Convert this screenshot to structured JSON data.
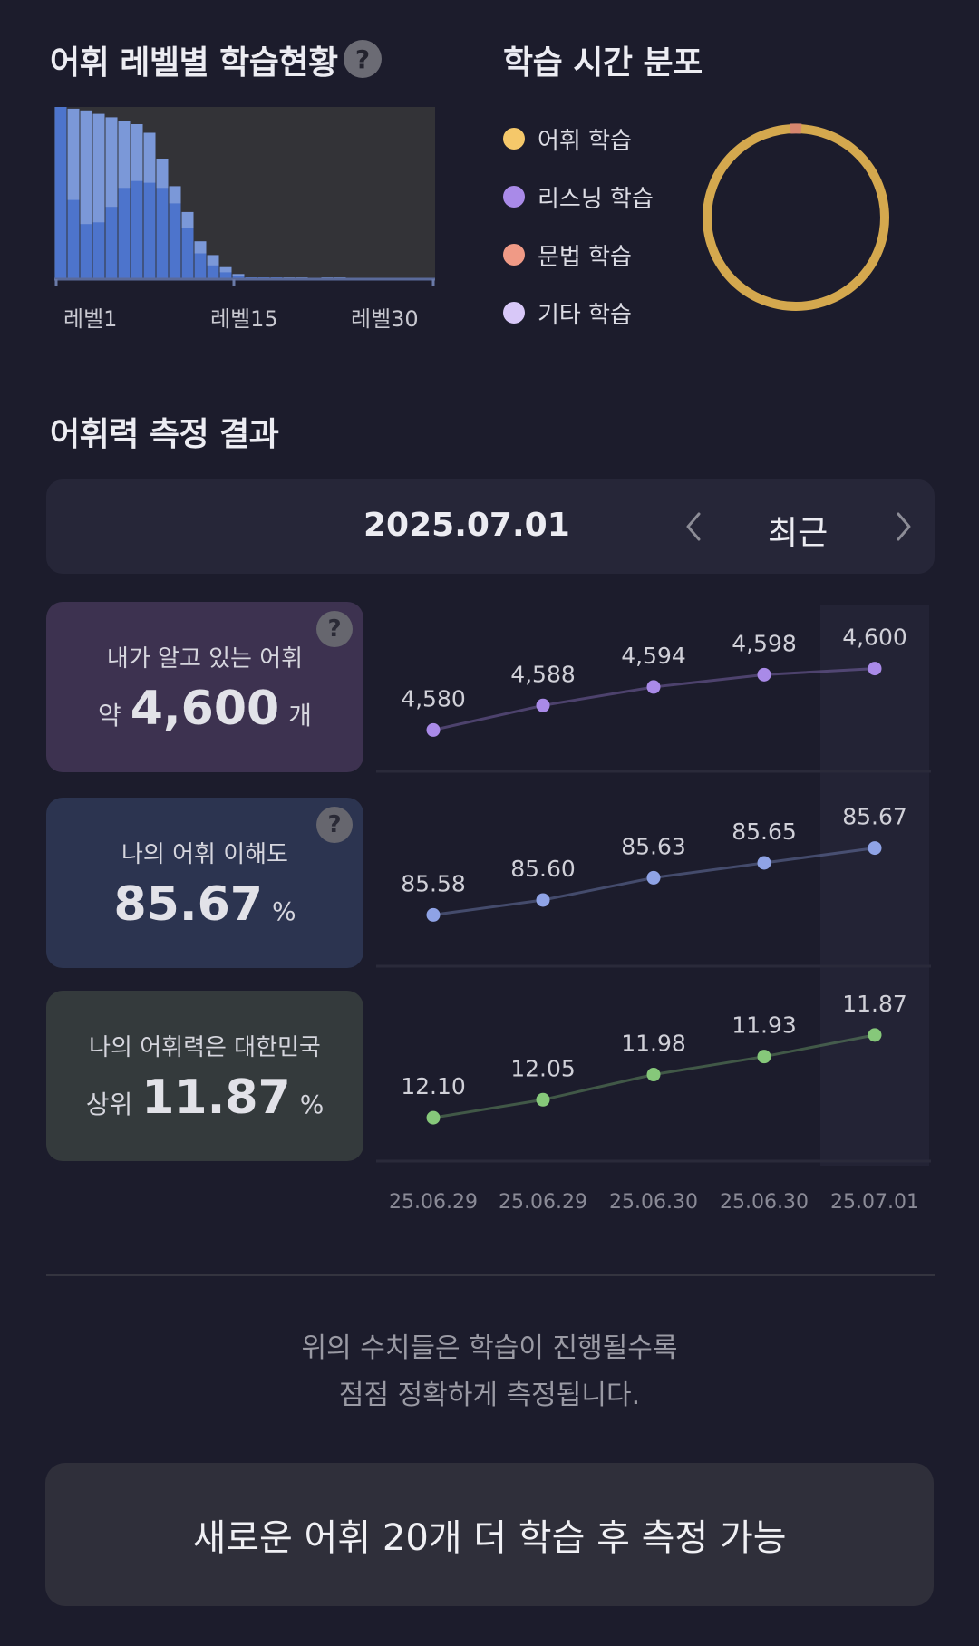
{
  "level_section": {
    "title": "어휘 레벨별 학습현황",
    "help_icon": "question-icon",
    "x_labels": [
      "레벨1",
      "레벨15",
      "레벨30"
    ]
  },
  "time_section": {
    "title": "학습 시간 분포",
    "legend": [
      {
        "label": "어휘 학습",
        "color": "#f5c86a"
      },
      {
        "label": "리스닝 학습",
        "color": "#a98ae8"
      },
      {
        "label": "문법 학습",
        "color": "#f09a86"
      },
      {
        "label": "기타 학습",
        "color": "#d8c8f8"
      }
    ],
    "donut_color": "#d4a84e",
    "donut_marker_color": "#d7866e"
  },
  "measure_section": {
    "title": "어휘력 측정 결과",
    "date": "2025.07.01",
    "period": "최근",
    "prev_icon": "chevron-left-icon",
    "next_icon": "chevron-right-icon"
  },
  "cards": {
    "known": {
      "label": "내가 알고 있는 어휘",
      "prefix": "약",
      "value": "4,600",
      "unit": "개"
    },
    "understanding": {
      "label": "나의 어휘 이해도",
      "value": "85.67",
      "unit": "%"
    },
    "rank": {
      "label": "나의 어휘력은 대한민국",
      "prefix": "상위",
      "value": "11.87",
      "unit": "%"
    }
  },
  "chart_data": [
    {
      "type": "bar",
      "title": "어휘 레벨별 학습현황",
      "categories": [
        "레벨1",
        "레벨2",
        "레벨3",
        "레벨4",
        "레벨5",
        "레벨6",
        "레벨7",
        "레벨8",
        "레벨9",
        "레벨10",
        "레벨11",
        "레벨12",
        "레벨13",
        "레벨14",
        "레벨15",
        "레벨16",
        "레벨17",
        "레벨18",
        "레벨19",
        "레벨20",
        "레벨21",
        "레벨22",
        "레벨23",
        "레벨24",
        "레벨25",
        "레벨26",
        "레벨27",
        "레벨28",
        "레벨29",
        "레벨30"
      ],
      "series": [
        {
          "values": [
            100,
            99,
            98,
            96,
            94,
            92,
            90,
            85,
            70,
            54,
            39,
            22,
            14,
            7,
            3,
            1,
            1,
            1,
            1,
            1,
            0,
            1,
            1,
            0,
            0,
            0,
            0,
            0,
            0,
            0
          ]
        },
        {
          "values": [
            100,
            46,
            32,
            33,
            42,
            53,
            57,
            56,
            53,
            44,
            30,
            15,
            8,
            4,
            2,
            1,
            1,
            1,
            0,
            0,
            0,
            0,
            0,
            0,
            0,
            0,
            0,
            0,
            0,
            0
          ]
        }
      ],
      "ylim": [
        0,
        100
      ],
      "colors": [
        "#7b98d8",
        "#4d74cc"
      ],
      "background": "#333337"
    },
    {
      "type": "pie",
      "title": "학습 시간 분포",
      "categories": [
        "어휘 학습",
        "리스닝 학습",
        "문법 학습",
        "기타 학습"
      ],
      "values": [
        99,
        0,
        1,
        0
      ]
    },
    {
      "type": "line",
      "x": [
        "25.06.29",
        "25.06.29",
        "25.06.30",
        "25.06.30",
        "25.07.01"
      ],
      "series": [
        {
          "values": [
            4580,
            4588,
            4594,
            4598,
            4600
          ],
          "labels": [
            "4,580",
            "4,588",
            "4,594",
            "4,598",
            "4,600"
          ],
          "color": "#a98ae8",
          "ylim": [
            4576,
            4604
          ]
        },
        {
          "values": [
            85.58,
            85.6,
            85.63,
            85.65,
            85.67
          ],
          "labels": [
            "85.58",
            "85.60",
            "85.63",
            "85.65",
            "85.67"
          ],
          "color": "#8fa3e6",
          "ylim": [
            85.55,
            85.7
          ]
        },
        {
          "values": [
            12.1,
            12.05,
            11.98,
            11.93,
            11.87
          ],
          "labels": [
            "12.10",
            "12.05",
            "11.98",
            "11.93",
            "11.87"
          ],
          "color": "#86c87a",
          "ylim": [
            12.14,
            11.83
          ]
        }
      ]
    }
  ],
  "footer": {
    "note_line1": "위의 수치들은 학습이 진행될수록",
    "note_line2": "점점 정확하게 측정됩니다.",
    "button_label": "새로운 어휘 20개 더 학습 후 측정 가능"
  }
}
